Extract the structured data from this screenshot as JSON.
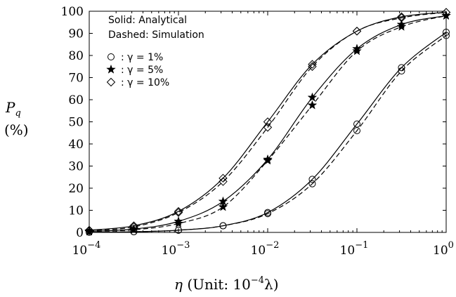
{
  "chart_data": {
    "type": "line",
    "xscale": "log",
    "xlim": [
      0.0001,
      1
    ],
    "ylim": [
      0,
      100
    ],
    "x_ticks": [
      0.0001,
      0.001,
      0.01,
      0.1,
      1
    ],
    "x_tick_labels": [
      {
        "base": "10",
        "exp": "−4"
      },
      {
        "base": "10",
        "exp": "−3"
      },
      {
        "base": "10",
        "exp": "−2"
      },
      {
        "base": "10",
        "exp": "−1"
      },
      {
        "base": "10",
        "exp": "0"
      }
    ],
    "y_ticks": [
      0,
      10,
      20,
      30,
      40,
      50,
      60,
      70,
      80,
      90,
      100
    ],
    "xlabel": {
      "sym": "η",
      "text": " (Unit: 10",
      "exp": "−4",
      "tail": "λ)"
    },
    "ylabel": {
      "sym": "P",
      "sub": "q",
      "unit": "(%)"
    },
    "legend": {
      "line1": "Solid: Analytical",
      "line2": "Dashed: Simulation",
      "entries": [
        {
          "marker": "circle",
          "label": ": γ = 1%"
        },
        {
          "marker": "star",
          "label": ": γ = 5%"
        },
        {
          "marker": "diamond",
          "label": ": γ = 10%"
        }
      ]
    },
    "series": [
      {
        "marker": "circle",
        "x": [
          0.0001,
          0.000316,
          0.001,
          0.00316,
          0.01,
          0.0316,
          0.1,
          0.316,
          1
        ],
        "analytical": [
          0.1,
          0.3,
          1,
          3,
          9,
          24,
          49,
          74.5,
          90.5
        ],
        "simulation": [
          0.1,
          0.3,
          1,
          3,
          8.5,
          22,
          46,
          73,
          89
        ]
      },
      {
        "marker": "star",
        "x": [
          0.0001,
          0.000316,
          0.001,
          0.00316,
          0.01,
          0.0316,
          0.1,
          0.316,
          1
        ],
        "analytical": [
          0.5,
          1.5,
          5,
          14,
          33,
          61,
          83,
          94,
          98
        ],
        "simulation": [
          0.4,
          1.2,
          4,
          11.5,
          32.5,
          57.5,
          82,
          93,
          98
        ]
      },
      {
        "marker": "diamond",
        "x": [
          0.0001,
          0.000316,
          0.001,
          0.00316,
          0.01,
          0.0316,
          0.1,
          0.316,
          1
        ],
        "analytical": [
          1,
          3,
          9.5,
          24.5,
          50,
          76,
          91,
          97.5,
          99.5
        ],
        "simulation": [
          0.8,
          2.5,
          9,
          23,
          47.5,
          75,
          91,
          97,
          99.5
        ]
      }
    ]
  }
}
